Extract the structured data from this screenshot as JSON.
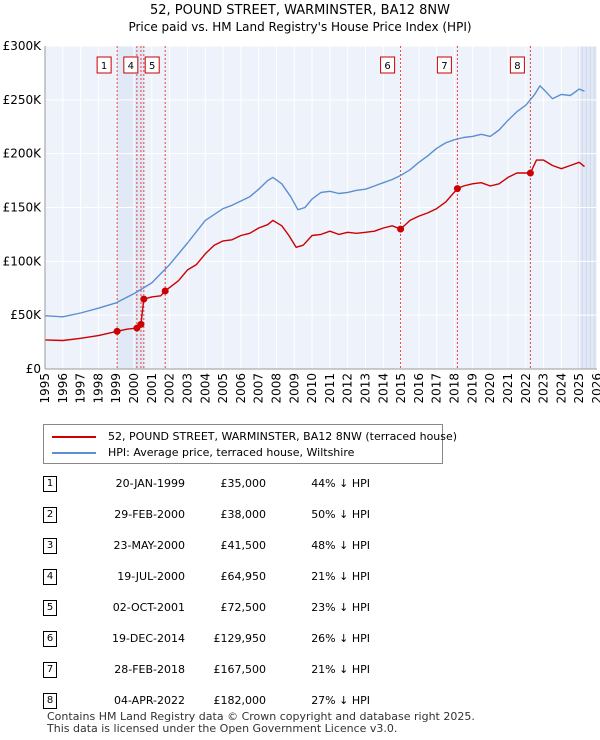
{
  "chart_data": {
    "type": "line",
    "title": "52, POUND STREET, WARMINSTER, BA12 8NW",
    "subtitle": "Price paid vs. HM Land Registry's House Price Index (HPI)",
    "x_range": [
      1995,
      2026
    ],
    "ylim": [
      0,
      300000
    ],
    "y_ticks": [
      {
        "value": 0,
        "label": "£0"
      },
      {
        "value": 50000,
        "label": "£50K"
      },
      {
        "value": 100000,
        "label": "£100K"
      },
      {
        "value": 150000,
        "label": "£150K"
      },
      {
        "value": 200000,
        "label": "£200K"
      },
      {
        "value": 250000,
        "label": "£250K"
      },
      {
        "value": 300000,
        "label": "£300K"
      }
    ],
    "x_ticks": [
      "1995",
      "1996",
      "1997",
      "1998",
      "1999",
      "2000",
      "2001",
      "2002",
      "2003",
      "2004",
      "2005",
      "2006",
      "2007",
      "2008",
      "2009",
      "2010",
      "2011",
      "2012",
      "2013",
      "2014",
      "2015",
      "2016",
      "2017",
      "2018",
      "2019",
      "2020",
      "2021",
      "2022",
      "2023",
      "2024",
      "2025",
      "2026"
    ],
    "series": [
      {
        "name": "52, POUND STREET, WARMINSTER, BA12 8NW (terraced house)",
        "color": "#cc0000",
        "points": [
          [
            1995.0,
            27000
          ],
          [
            1996.0,
            26500
          ],
          [
            1997.0,
            28500
          ],
          [
            1998.0,
            31000
          ],
          [
            1999.05,
            35000
          ],
          [
            1999.6,
            37000
          ],
          [
            2000.16,
            38000
          ],
          [
            2000.3,
            41500
          ],
          [
            2000.39,
            41500
          ],
          [
            2000.55,
            64950
          ],
          [
            2001.0,
            67000
          ],
          [
            2001.5,
            68000
          ],
          [
            2001.75,
            72500
          ],
          [
            2002.5,
            82000
          ],
          [
            2003.0,
            92000
          ],
          [
            2003.5,
            97000
          ],
          [
            2004.0,
            107000
          ],
          [
            2004.5,
            115000
          ],
          [
            2005.0,
            119000
          ],
          [
            2005.5,
            120000
          ],
          [
            2006.0,
            124000
          ],
          [
            2006.5,
            126000
          ],
          [
            2007.0,
            131000
          ],
          [
            2007.5,
            134000
          ],
          [
            2007.8,
            138000
          ],
          [
            2008.3,
            133000
          ],
          [
            2008.7,
            124000
          ],
          [
            2009.1,
            113000
          ],
          [
            2009.5,
            115000
          ],
          [
            2010.0,
            124000
          ],
          [
            2010.5,
            125000
          ],
          [
            2011.0,
            128000
          ],
          [
            2011.5,
            125000
          ],
          [
            2012.0,
            127000
          ],
          [
            2012.5,
            126000
          ],
          [
            2013.0,
            127000
          ],
          [
            2013.5,
            128000
          ],
          [
            2014.0,
            131000
          ],
          [
            2014.5,
            133000
          ],
          [
            2014.97,
            129950
          ],
          [
            2015.5,
            138000
          ],
          [
            2016.0,
            142000
          ],
          [
            2016.5,
            145000
          ],
          [
            2017.0,
            149000
          ],
          [
            2017.5,
            155000
          ],
          [
            2018.16,
            167500
          ],
          [
            2018.5,
            170000
          ],
          [
            2019.0,
            172000
          ],
          [
            2019.5,
            173000
          ],
          [
            2020.0,
            170000
          ],
          [
            2020.5,
            172000
          ],
          [
            2021.0,
            178000
          ],
          [
            2021.5,
            182000
          ],
          [
            2022.26,
            182000
          ],
          [
            2022.6,
            194000
          ],
          [
            2023.0,
            194000
          ],
          [
            2023.5,
            189000
          ],
          [
            2024.0,
            186000
          ],
          [
            2024.5,
            189000
          ],
          [
            2025.0,
            192000
          ],
          [
            2025.3,
            188000
          ]
        ]
      },
      {
        "name": "HPI: Average price, terraced house, Wiltshire",
        "color": "#5b8fd1",
        "points": [
          [
            1995.0,
            49500
          ],
          [
            1996.0,
            48500
          ],
          [
            1997.0,
            52000
          ],
          [
            1998.0,
            56500
          ],
          [
            1999.0,
            61500
          ],
          [
            2000.0,
            70000
          ],
          [
            2001.0,
            80000
          ],
          [
            2002.0,
            97000
          ],
          [
            2003.0,
            117000
          ],
          [
            2004.0,
            138000
          ],
          [
            2005.0,
            149000
          ],
          [
            2005.5,
            152000
          ],
          [
            2006.0,
            156000
          ],
          [
            2006.5,
            160000
          ],
          [
            2007.0,
            167000
          ],
          [
            2007.5,
            175000
          ],
          [
            2007.8,
            178000
          ],
          [
            2008.3,
            172000
          ],
          [
            2008.8,
            160000
          ],
          [
            2009.2,
            148000
          ],
          [
            2009.6,
            150000
          ],
          [
            2010.0,
            158000
          ],
          [
            2010.5,
            164000
          ],
          [
            2011.0,
            165000
          ],
          [
            2011.5,
            163000
          ],
          [
            2012.0,
            164000
          ],
          [
            2012.5,
            166000
          ],
          [
            2013.0,
            167000
          ],
          [
            2013.5,
            170000
          ],
          [
            2014.0,
            173000
          ],
          [
            2014.5,
            176000
          ],
          [
            2015.0,
            180000
          ],
          [
            2015.5,
            185000
          ],
          [
            2016.0,
            192000
          ],
          [
            2016.5,
            198000
          ],
          [
            2017.0,
            205000
          ],
          [
            2017.5,
            210000
          ],
          [
            2018.0,
            213000
          ],
          [
            2018.5,
            215000
          ],
          [
            2019.0,
            216000
          ],
          [
            2019.5,
            218000
          ],
          [
            2020.0,
            216000
          ],
          [
            2020.5,
            222000
          ],
          [
            2021.0,
            231000
          ],
          [
            2021.5,
            239000
          ],
          [
            2022.0,
            245000
          ],
          [
            2022.5,
            255000
          ],
          [
            2022.8,
            263000
          ],
          [
            2023.1,
            258000
          ],
          [
            2023.5,
            251000
          ],
          [
            2024.0,
            255000
          ],
          [
            2024.5,
            254000
          ],
          [
            2025.0,
            260000
          ],
          [
            2025.3,
            258000
          ]
        ]
      }
    ],
    "sales": [
      {
        "id": "1",
        "x": 1999.05,
        "price": 35000
      },
      {
        "id": "2",
        "x": 2000.16,
        "price": 38000
      },
      {
        "id": "3",
        "x": 2000.39,
        "price": 41500
      },
      {
        "id": "4",
        "x": 2000.55,
        "price": 64950
      },
      {
        "id": "5",
        "x": 2001.75,
        "price": 72500
      },
      {
        "id": "6",
        "x": 2014.97,
        "price": 129950
      },
      {
        "id": "7",
        "x": 2018.16,
        "price": 167500
      },
      {
        "id": "8",
        "x": 2022.26,
        "price": 182000
      }
    ],
    "marker_labels_shown": [
      "1",
      "4",
      "5",
      "6",
      "7",
      "8"
    ],
    "shaded_periods": [
      [
        1999.05,
        2000.55
      ],
      [
        2001.75,
        2001.75
      ],
      [
        2014.97,
        2014.97
      ],
      [
        2018.16,
        2018.16
      ],
      [
        2022.26,
        2022.26
      ],
      [
        2024.95,
        2026.0
      ]
    ]
  },
  "legend": {
    "items": [
      {
        "label": "52, POUND STREET, WARMINSTER, BA12 8NW (terraced house)",
        "color": "#cc0000"
      },
      {
        "label": "HPI: Average price, terraced house, Wiltshire",
        "color": "#5b8fd1"
      }
    ]
  },
  "transactions": [
    {
      "num": "1",
      "date": "20-JAN-1999",
      "price": "£35,000",
      "hpi": "44% ↓ HPI"
    },
    {
      "num": "2",
      "date": "29-FEB-2000",
      "price": "£38,000",
      "hpi": "50% ↓ HPI"
    },
    {
      "num": "3",
      "date": "23-MAY-2000",
      "price": "£41,500",
      "hpi": "48% ↓ HPI"
    },
    {
      "num": "4",
      "date": "19-JUL-2000",
      "price": "£64,950",
      "hpi": "21% ↓ HPI"
    },
    {
      "num": "5",
      "date": "02-OCT-2001",
      "price": "£72,500",
      "hpi": "23% ↓ HPI"
    },
    {
      "num": "6",
      "date": "19-DEC-2014",
      "price": "£129,950",
      "hpi": "26% ↓ HPI"
    },
    {
      "num": "7",
      "date": "28-FEB-2018",
      "price": "£167,500",
      "hpi": "21% ↓ HPI"
    },
    {
      "num": "8",
      "date": "04-APR-2022",
      "price": "£182,000",
      "hpi": "27% ↓ HPI"
    }
  ],
  "footer": {
    "line1": "Contains HM Land Registry data © Crown copyright and database right 2025.",
    "line2": "This data is licensed under the Open Government Licence v3.0."
  }
}
